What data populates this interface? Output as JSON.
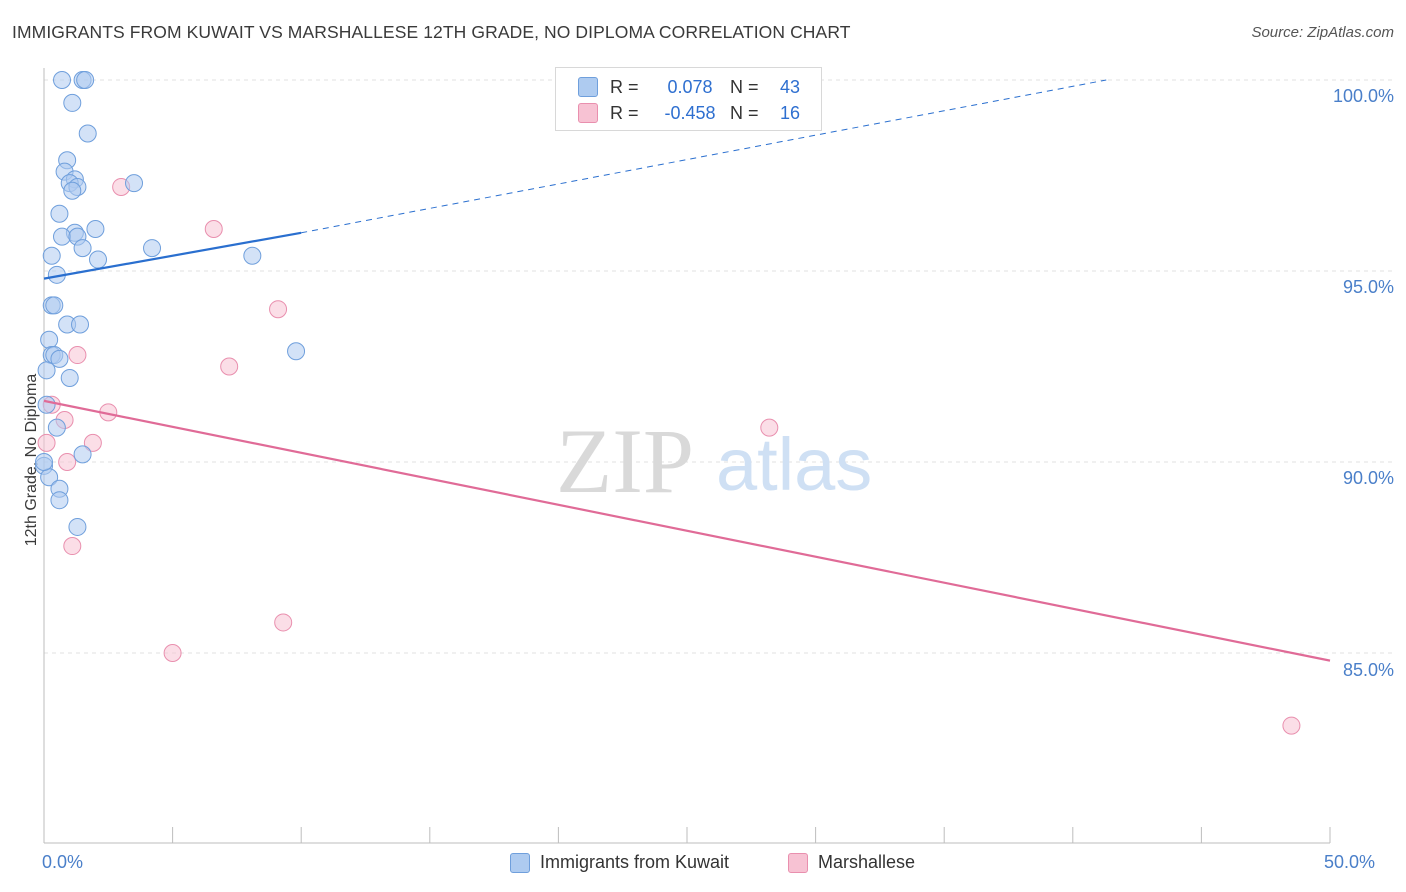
{
  "title": "IMMIGRANTS FROM KUWAIT VS MARSHALLESE 12TH GRADE, NO DIPLOMA CORRELATION CHART",
  "source": "Source: ZipAtlas.com",
  "watermark": {
    "zip": "ZIP",
    "atlas": "atlas"
  },
  "legend": {
    "rows": [
      {
        "r_label": "R =",
        "r_value": "0.078",
        "n_label": "N =",
        "n_value": "43"
      },
      {
        "r_label": "R =",
        "r_value": "-0.458",
        "n_label": "N =",
        "n_value": "16"
      }
    ]
  },
  "colors": {
    "blue_fill": "#aecbf0",
    "blue_stroke": "#6f9fdc",
    "blue_line": "#2a6fcf",
    "pink_fill": "#f7c2d3",
    "pink_stroke": "#e98fae",
    "pink_line": "#e06b97",
    "tick_text": "#4a7fc9",
    "grid": "#e2e2e2"
  },
  "chart_data": {
    "type": "scatter",
    "title": "IMMIGRANTS FROM KUWAIT VS MARSHALLESE 12TH GRADE, NO DIPLOMA CORRELATION CHART",
    "xlabel": "",
    "ylabel": "12th Grade, No Diploma",
    "xlim": [
      0,
      50
    ],
    "ylim": [
      80.5,
      100.2
    ],
    "x_tick_labels": [
      "0.0%",
      "50.0%"
    ],
    "y_ticks": [
      {
        "value": 100,
        "label": "100.0%"
      },
      {
        "value": 95,
        "label": "95.0%"
      },
      {
        "value": 90,
        "label": "90.0%"
      },
      {
        "value": 85,
        "label": "85.0%"
      }
    ],
    "legend_position": "top-center",
    "series": [
      {
        "name": "Immigrants from Kuwait",
        "color": "blue",
        "R": 0.078,
        "N": 43,
        "trend": {
          "x0": 0,
          "y0": 94.8,
          "x1": 10,
          "y1": 96.0,
          "dashed_to_x": 41.3,
          "dashed_to_y": 100.0
        },
        "points": [
          [
            0.7,
            100.0
          ],
          [
            1.5,
            100.0
          ],
          [
            1.6,
            100.0
          ],
          [
            1.1,
            99.4
          ],
          [
            1.7,
            98.6
          ],
          [
            0.9,
            97.9
          ],
          [
            0.8,
            97.6
          ],
          [
            1.2,
            97.4
          ],
          [
            1.0,
            97.3
          ],
          [
            1.3,
            97.2
          ],
          [
            1.1,
            97.1
          ],
          [
            3.5,
            97.3
          ],
          [
            0.6,
            96.5
          ],
          [
            2.0,
            96.1
          ],
          [
            1.2,
            96.0
          ],
          [
            0.7,
            95.9
          ],
          [
            1.3,
            95.9
          ],
          [
            1.5,
            95.6
          ],
          [
            4.2,
            95.6
          ],
          [
            0.3,
            95.4
          ],
          [
            8.1,
            95.4
          ],
          [
            2.1,
            95.3
          ],
          [
            0.5,
            94.9
          ],
          [
            0.3,
            94.1
          ],
          [
            0.4,
            94.1
          ],
          [
            0.9,
            93.6
          ],
          [
            1.4,
            93.6
          ],
          [
            0.2,
            93.2
          ],
          [
            0.3,
            92.8
          ],
          [
            0.4,
            92.8
          ],
          [
            0.6,
            92.7
          ],
          [
            0.1,
            92.4
          ],
          [
            1.0,
            92.2
          ],
          [
            9.8,
            92.9
          ],
          [
            0.1,
            91.5
          ],
          [
            0.5,
            90.9
          ],
          [
            1.5,
            90.2
          ],
          [
            0.0,
            89.9
          ],
          [
            0.2,
            89.6
          ],
          [
            0.6,
            89.3
          ],
          [
            0.6,
            89.0
          ],
          [
            1.3,
            88.3
          ],
          [
            0.0,
            90.0
          ]
        ]
      },
      {
        "name": "Marshallese",
        "color": "pink",
        "R": -0.458,
        "N": 16,
        "trend": {
          "x0": 0,
          "y0": 91.6,
          "x1": 50,
          "y1": 84.8
        },
        "points": [
          [
            3.0,
            97.2
          ],
          [
            6.6,
            96.1
          ],
          [
            9.1,
            94.0
          ],
          [
            1.3,
            92.8
          ],
          [
            7.2,
            92.5
          ],
          [
            0.3,
            91.5
          ],
          [
            0.8,
            91.1
          ],
          [
            2.5,
            91.3
          ],
          [
            28.2,
            90.9
          ],
          [
            0.1,
            90.5
          ],
          [
            1.9,
            90.5
          ],
          [
            0.9,
            90.0
          ],
          [
            1.1,
            87.8
          ],
          [
            9.3,
            85.8
          ],
          [
            5.0,
            85.0
          ],
          [
            48.5,
            83.1
          ]
        ]
      }
    ]
  },
  "bottom_legend": [
    {
      "label": "Immigrants from Kuwait"
    },
    {
      "label": "Marshallese"
    }
  ]
}
